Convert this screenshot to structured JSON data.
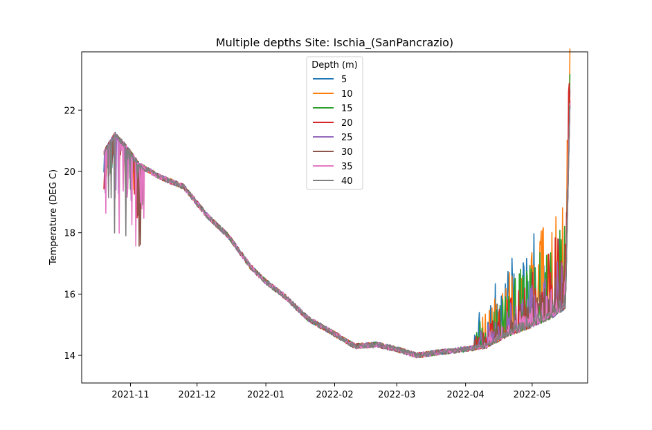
{
  "chart_data": {
    "type": "line",
    "title": "Multiple depths Site: Ischia_(SanPancrazio)",
    "xlabel": "",
    "ylabel": "Temperature (DEG C)",
    "x_ticks": [
      "2021-11",
      "2021-12",
      "2022-01",
      "2022-02",
      "2022-03",
      "2022-04",
      "2022-05"
    ],
    "x_tick_dates": [
      "2021-11-01",
      "2021-12-01",
      "2022-01-01",
      "2022-02-01",
      "2022-03-01",
      "2022-04-01",
      "2022-05-01"
    ],
    "xlim": [
      "2021-10-10",
      "2022-05-26"
    ],
    "y_ticks": [
      14,
      16,
      18,
      20,
      22
    ],
    "ylim": [
      13.1,
      23.9
    ],
    "grid": false,
    "legend": {
      "title": "Depth (m)",
      "placement": "top-center"
    },
    "series": [
      {
        "name": "5",
        "color": "#1f77b4",
        "spike_amp": 2.4
      },
      {
        "name": "10",
        "color": "#ff7f0e",
        "spike_amp": 2.0
      },
      {
        "name": "15",
        "color": "#2ca02c",
        "spike_amp": 1.7
      },
      {
        "name": "20",
        "color": "#d62728",
        "spike_amp": 1.4
      },
      {
        "name": "25",
        "color": "#9467bd",
        "spike_amp": 1.0
      },
      {
        "name": "30",
        "color": "#8c564b",
        "spike_amp": 0.7
      },
      {
        "name": "35",
        "color": "#e377c2",
        "spike_amp": 0.5
      },
      {
        "name": "40",
        "color": "#7f7f7f",
        "spike_amp": 0.2
      }
    ],
    "baseline": {
      "dates": [
        "2021-10-20",
        "2021-10-25",
        "2021-10-30",
        "2021-11-05",
        "2021-11-15",
        "2021-11-25",
        "2021-12-05",
        "2021-12-15",
        "2021-12-25",
        "2022-01-01",
        "2022-01-10",
        "2022-01-20",
        "2022-02-01",
        "2022-02-10",
        "2022-02-20",
        "2022-03-01",
        "2022-03-10",
        "2022-03-20",
        "2022-04-01",
        "2022-04-10",
        "2022-04-20",
        "2022-05-01",
        "2022-05-10",
        "2022-05-16",
        "2022-05-18"
      ],
      "values": [
        20.6,
        21.2,
        20.8,
        20.2,
        19.8,
        19.5,
        18.6,
        17.9,
        16.9,
        16.4,
        15.9,
        15.2,
        14.7,
        14.3,
        14.35,
        14.2,
        14.0,
        14.1,
        14.2,
        14.3,
        14.7,
        15.0,
        15.3,
        15.6,
        22.2
      ]
    }
  }
}
